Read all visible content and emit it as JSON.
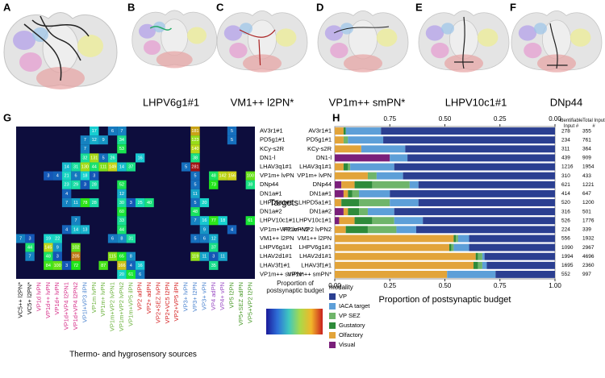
{
  "panels": [
    {
      "letter": "A"
    },
    {
      "letter": "B",
      "label": "LHPV6g1#1"
    },
    {
      "letter": "C",
      "label": "VM1++ l2PN*"
    },
    {
      "letter": "D",
      "label": "VP1m++ smPN*"
    },
    {
      "letter": "E",
      "label": "LHPV10c1#1"
    },
    {
      "letter": "F",
      "label": "DNp44"
    }
  ],
  "chart_data": [
    {
      "type": "heatmap",
      "letter": "G",
      "xlabel": "Thermo- and hygrosensory sources",
      "colorbar_title": "Proportion of postsynaptic budget",
      "columns": [
        "VC5++ l2PN*",
        "VC5+ l2PN*",
        "VP1d lvPN",
        "VP1d++ lvPN",
        "VP1d+ lvPN",
        "VP1d+VP4 l2PN1",
        "VP1d+VP4 l2PN2",
        "VP1l+VP3 ilPN",
        "VP1m lvPN",
        "VP1m+ lvPN",
        "VP1m+VP2 lvPN1",
        "VP1m+VP2 lvPN2",
        "VP1m+VP5 ilPN",
        "VP2 adPN",
        "VP2+ adPN",
        "VP2+SEZ lvPN",
        "VP2+VC5 l2PN",
        "VP2+VP5 ilPN",
        "VP3+ lvPN",
        "VP3+ l2PN",
        "VP3+ vPN",
        "VP4 adPN",
        "VP4+ vPN",
        "VP5 l2PN",
        "VP5+SEZ adPN",
        "VP5+VP2 l2PN"
      ],
      "column_colors": [
        "#111111",
        "#111111",
        "#d6308a",
        "#d6308a",
        "#d6308a",
        "#d6308a",
        "#d6308a",
        "#4f86d0",
        "#6db33f",
        "#6db33f",
        "#6db33f",
        "#6db33f",
        "#6db33f",
        "#d62728",
        "#d62728",
        "#d62728",
        "#d62728",
        "#d62728",
        "#4f86d0",
        "#4f86d0",
        "#4f86d0",
        "#9b4fc4",
        "#9b4fc4",
        "#4a9a2a",
        "#4a9a2a",
        "#4a9a2a"
      ],
      "rows": [
        "AV3r1#1",
        "PD5g1#1",
        "KCy-s2R",
        "DN1-l",
        "LHAV3q1#1",
        "VP1m+ lvPN",
        "DNp44",
        "DN1a#1",
        "LHPD5a1#1",
        "DN1a#2",
        "LHPV10c1#1",
        "VP1m+VP2 lvPN2",
        "VM1++ l2PN",
        "LHPV6g1#1",
        "LHAV2d1#1",
        "LHAV3f1#1",
        "VP1m++ smPN*"
      ],
      "values": [
        [
          null,
          null,
          null,
          null,
          null,
          null,
          null,
          null,
          17,
          null,
          6,
          7,
          null,
          null,
          null,
          null,
          null,
          null,
          null,
          181,
          null,
          null,
          null,
          5,
          null,
          null
        ],
        [
          null,
          null,
          null,
          null,
          null,
          null,
          null,
          7,
          12,
          9,
          null,
          34,
          null,
          null,
          null,
          null,
          null,
          null,
          null,
          123,
          null,
          null,
          null,
          5,
          null,
          null
        ],
        [
          null,
          null,
          null,
          null,
          null,
          null,
          null,
          7,
          null,
          null,
          null,
          53,
          null,
          null,
          null,
          null,
          null,
          null,
          null,
          140,
          null,
          null,
          null,
          null,
          null,
          null
        ],
        [
          null,
          null,
          null,
          null,
          null,
          null,
          null,
          32,
          131,
          5,
          26,
          null,
          null,
          16,
          null,
          null,
          null,
          null,
          null,
          38,
          null,
          null,
          null,
          null,
          null,
          null
        ],
        [
          null,
          null,
          null,
          null,
          null,
          14,
          31,
          130,
          44,
          111,
          149,
          14,
          37,
          null,
          null,
          null,
          null,
          null,
          5,
          281,
          null,
          null,
          null,
          null,
          null,
          null
        ],
        [
          null,
          null,
          null,
          3,
          4,
          21,
          6,
          18,
          3,
          null,
          null,
          null,
          null,
          null,
          null,
          null,
          null,
          null,
          null,
          5,
          null,
          48,
          142,
          156,
          null,
          100
        ],
        [
          null,
          null,
          null,
          null,
          null,
          23,
          29,
          3,
          28,
          null,
          null,
          52,
          null,
          null,
          null,
          null,
          null,
          null,
          null,
          5,
          null,
          73,
          null,
          null,
          null,
          38
        ],
        [
          null,
          null,
          null,
          null,
          null,
          4,
          null,
          null,
          null,
          null,
          null,
          12,
          null,
          null,
          null,
          null,
          null,
          null,
          null,
          11,
          null,
          null,
          null,
          null,
          null,
          null
        ],
        [
          null,
          null,
          null,
          null,
          null,
          7,
          11,
          78,
          28,
          null,
          null,
          30,
          3,
          25,
          40,
          null,
          null,
          null,
          null,
          5,
          20,
          null,
          null,
          null,
          null,
          null
        ],
        [
          null,
          null,
          null,
          null,
          null,
          null,
          null,
          null,
          null,
          null,
          null,
          60,
          null,
          null,
          null,
          null,
          null,
          null,
          null,
          48,
          null,
          null,
          null,
          null,
          null,
          null
        ],
        [
          null,
          null,
          null,
          null,
          null,
          null,
          7,
          null,
          null,
          null,
          null,
          33,
          null,
          null,
          null,
          null,
          null,
          null,
          null,
          7,
          16,
          77,
          18,
          null,
          null,
          61
        ],
        [
          null,
          null,
          null,
          null,
          null,
          4,
          14,
          13,
          null,
          null,
          null,
          44,
          null,
          null,
          null,
          null,
          null,
          null,
          null,
          null,
          9,
          null,
          null,
          4,
          null,
          null
        ],
        [
          7,
          3,
          null,
          19,
          22,
          null,
          null,
          null,
          null,
          null,
          6,
          8,
          31,
          null,
          null,
          null,
          null,
          null,
          null,
          5,
          6,
          12,
          null,
          null,
          null,
          null
        ],
        [
          null,
          44,
          null,
          145,
          9,
          null,
          102,
          null,
          null,
          null,
          null,
          null,
          null,
          null,
          null,
          null,
          null,
          null,
          null,
          null,
          null,
          37,
          null,
          null,
          null,
          null
        ],
        [
          null,
          7,
          null,
          48,
          3,
          null,
          205,
          null,
          null,
          null,
          115,
          65,
          8,
          null,
          null,
          null,
          null,
          null,
          null,
          119,
          11,
          3,
          11,
          null,
          null,
          null
        ],
        [
          null,
          null,
          null,
          84,
          100,
          3,
          72,
          null,
          null,
          87,
          null,
          166,
          4,
          16,
          null,
          null,
          null,
          null,
          null,
          null,
          null,
          35,
          null,
          null,
          null,
          null
        ],
        [
          null,
          null,
          null,
          null,
          null,
          null,
          null,
          null,
          null,
          null,
          null,
          20,
          61,
          6,
          null,
          null,
          null,
          null,
          null,
          null,
          null,
          null,
          null,
          null,
          null,
          null
        ]
      ]
    },
    {
      "type": "stacked-bar",
      "letter": "H",
      "xlabel": "Proportion of postsynaptic budget",
      "ylabel": "Targets",
      "legend_title": "modality",
      "categories": [
        "AV3r1#1",
        "PD5g1#1",
        "KCy-s2R",
        "DN1-l",
        "LHAV3q1#1",
        "VP1m+ lvPN",
        "DNp44",
        "DN1a#1",
        "LHPD5a1#1",
        "DN1a#2",
        "LHPV10c1#1",
        "VP1m+VP2 lvPN2",
        "VM1++ l2PN",
        "LHPV6g1#1",
        "LHAV2d1#1",
        "LHAV3f1#1",
        "VP1m++ smPN*"
      ],
      "series": [
        {
          "name": "VP",
          "color": "#2b3f91",
          "values": [
            0.79,
            0.78,
            0.68,
            0.67,
            0.73,
            0.69,
            0.62,
            0.75,
            0.62,
            0.73,
            0.6,
            0.63,
            0.39,
            0.39,
            0.32,
            0.31,
            0.27
          ]
        },
        {
          "name": "IACA target",
          "color": "#5d9fd8",
          "values": [
            0.16,
            0.16,
            0.2,
            0.08,
            0.2,
            0.12,
            0.04,
            0.14,
            0.13,
            0.12,
            0.13,
            0.09,
            0.05,
            0.07,
            0.01,
            0.02,
            0.22
          ]
        },
        {
          "name": "VP SEZ",
          "color": "#6fb56a",
          "values": [
            0,
            0.02,
            0,
            0,
            0.01,
            0.04,
            0.17,
            0.03,
            0.14,
            0.04,
            0.1,
            0.13,
            0.01,
            0.01,
            0.02,
            0.02,
            0
          ]
        },
        {
          "name": "Gustatory",
          "color": "#2e8b3a",
          "values": [
            0.01,
            0,
            0,
            0,
            0.02,
            0,
            0.08,
            0.02,
            0.08,
            0.05,
            0.08,
            0.1,
            0.01,
            0.01,
            0.01,
            0.02,
            0
          ]
        },
        {
          "name": "Olfactory",
          "color": "#e2a43a",
          "values": [
            0.04,
            0.04,
            0.12,
            0,
            0.04,
            0.15,
            0.06,
            0.02,
            0.03,
            0.02,
            0.07,
            0.05,
            0.54,
            0.52,
            0.64,
            0.63,
            0.51
          ]
        },
        {
          "name": "Visual",
          "color": "#7a1f7a",
          "values": [
            0,
            0,
            0,
            0.25,
            0,
            0,
            0.03,
            0.04,
            0,
            0.04,
            0.02,
            0,
            0,
            0,
            0,
            0,
            0
          ]
        }
      ],
      "xlim": [
        0,
        1
      ],
      "xticks": [
        {
          "value": 0,
          "label": "0.00"
        },
        {
          "value": 0.25,
          "label": "0.25"
        },
        {
          "value": 0.5,
          "label": "0.50"
        },
        {
          "value": 0.75,
          "label": "0.75"
        },
        {
          "value": 1,
          "label": "1.00"
        }
      ],
      "x2lim": [
        1,
        0
      ],
      "x2ticks": [
        {
          "value": 0.75,
          "label": "0.75"
        },
        {
          "value": 0.5,
          "label": "0.50"
        },
        {
          "value": 0.25,
          "label": "0.25"
        },
        {
          "value": 0,
          "label": "0.00"
        }
      ],
      "table": {
        "headers": [
          "Identifiable Input #",
          "Total Input #"
        ],
        "rows": [
          [
            278,
            355
          ],
          [
            234,
            761
          ],
          [
            311,
            364
          ],
          [
            439,
            909
          ],
          [
            1216,
            1954
          ],
          [
            310,
            433
          ],
          [
            621,
            1221
          ],
          [
            414,
            647
          ],
          [
            520,
            1200
          ],
          [
            316,
            501
          ],
          [
            526,
            1776
          ],
          [
            224,
            339
          ],
          [
            556,
            1932
          ],
          [
            1090,
            2967
          ],
          [
            1994,
            4696
          ],
          [
            1695,
            2360
          ],
          [
            552,
            997
          ]
        ]
      }
    }
  ]
}
